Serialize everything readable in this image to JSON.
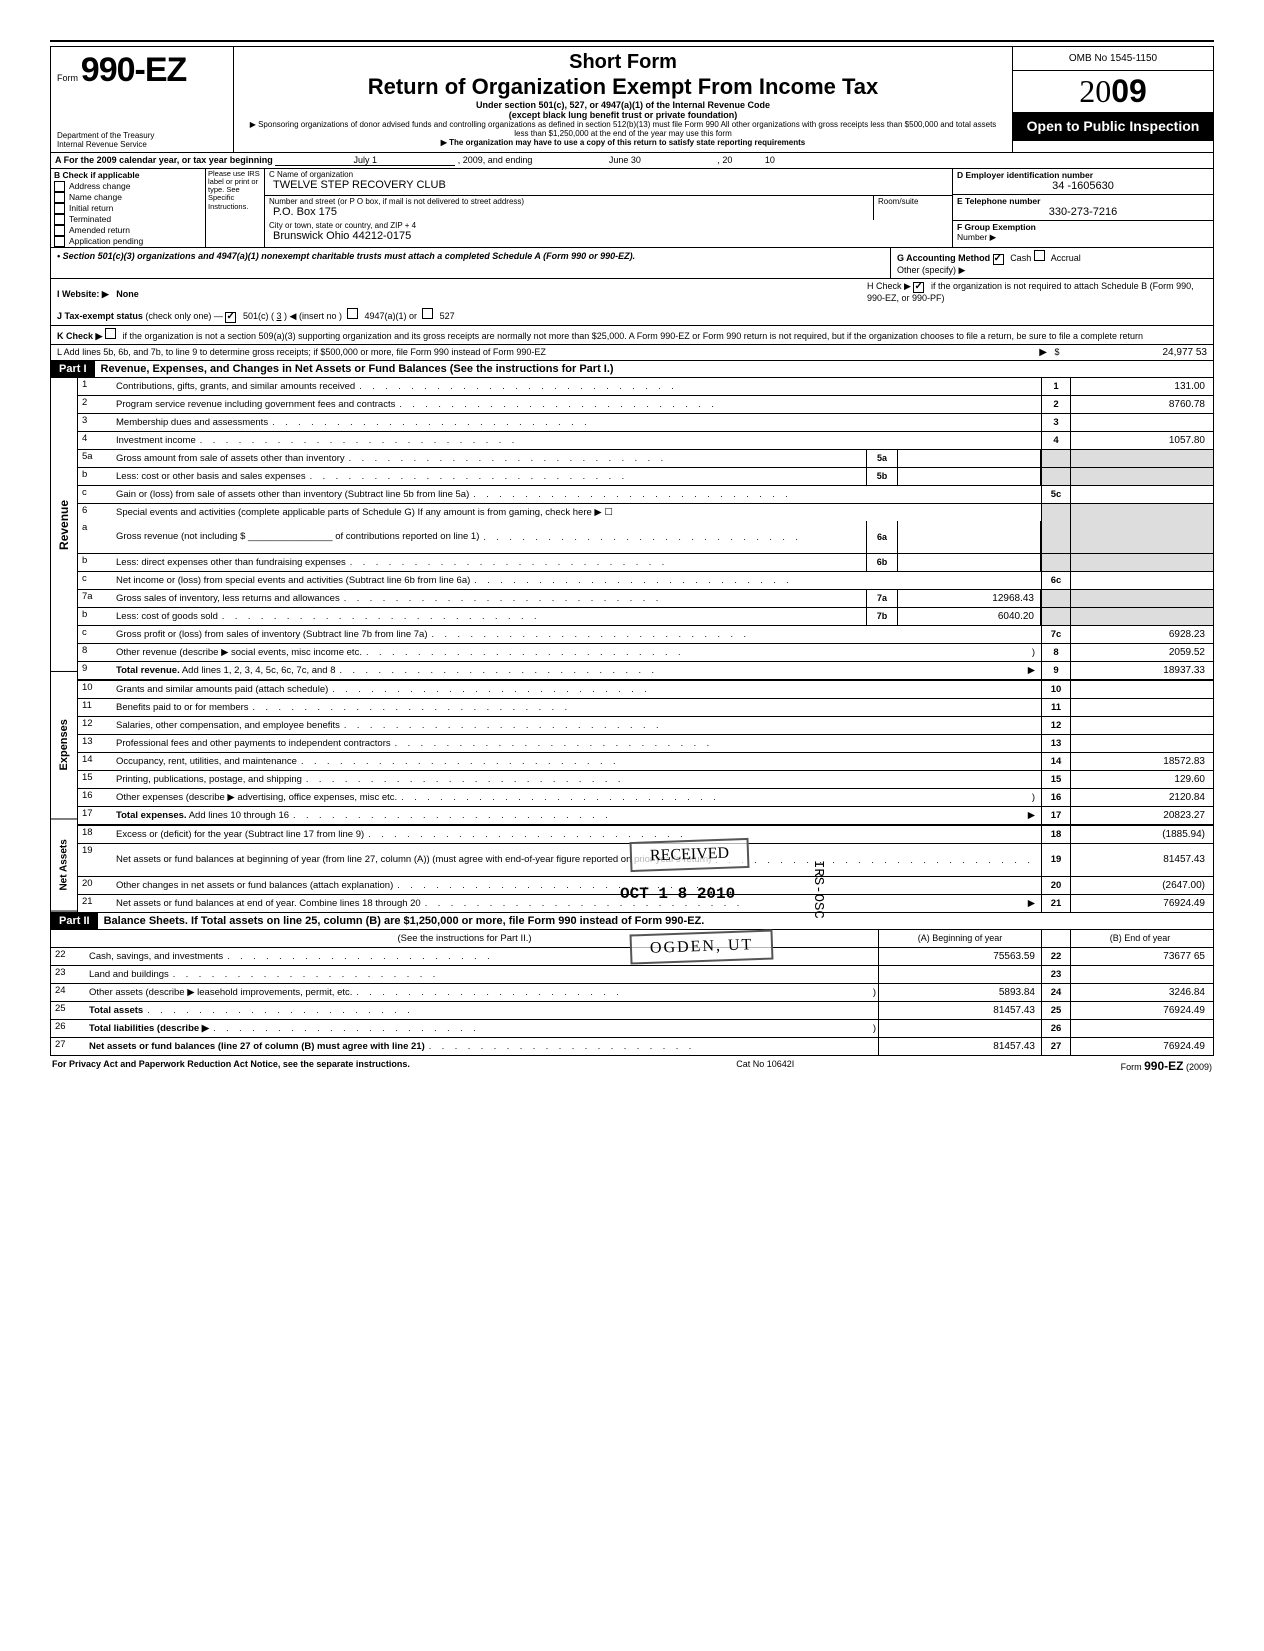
{
  "header": {
    "form_prefix": "Form",
    "form_number": "990-EZ",
    "dept": "Department of the Treasury\nInternal Revenue Service",
    "short": "Short Form",
    "title": "Return of Organization Exempt From Income Tax",
    "sub1": "Under section 501(c), 527, or 4947(a)(1) of the Internal Revenue Code",
    "sub2": "(except black lung benefit trust or private foundation)",
    "note1": "▶ Sponsoring organizations of donor advised funds and controlling organizations as defined in section 512(b)(13) must file Form 990  All other organizations with gross receipts less than $500,000 and total assets less than $1,250,000 at the end of the year may use this form",
    "note2": "▶ The organization may have to use a copy of this return to satisfy state reporting requirements",
    "omb": "OMB No  1545-1150",
    "year_prefix": "20",
    "year_bold": "09",
    "open": "Open to Public Inspection"
  },
  "rowA": {
    "label": "A For the 2009 calendar year, or tax year beginning",
    "begin": "July 1",
    "mid": ", 2009, and ending",
    "end": "June 30",
    "yr_lbl": ", 20",
    "yr": "10"
  },
  "blockB": {
    "header": "B  Check if applicable",
    "items": [
      "Address change",
      "Name change",
      "Initial return",
      "Terminated",
      "Amended return",
      "Application pending"
    ],
    "hint": "Please use IRS label or print or type. See Specific Instructions."
  },
  "org": {
    "c_lbl": "C  Name of organization",
    "name": "TWELVE STEP RECOVERY CLUB",
    "street_lbl": "Number and street (or P O  box, if mail is not delivered to street address)",
    "street": "P.O. Box 175",
    "room_lbl": "Room/suite",
    "city_lbl": "City or town, state or country, and ZIP + 4",
    "city": "Brunswick Ohio 44212-0175"
  },
  "right": {
    "d_lbl": "D Employer identification number",
    "d_val": "34 -1605630",
    "e_lbl": "E  Telephone number",
    "e_val": "330-273-7216",
    "f_lbl": "F  Group Exemption",
    "f_sub": "Number  ▶"
  },
  "bullet": {
    "text": "• Section 501(c)(3) organizations and 4947(a)(1) nonexempt charitable trusts must attach a completed Schedule A (Form 990 or 990-EZ).",
    "g_lbl": "G  Accounting Method",
    "cash": "Cash",
    "accrual": "Accrual",
    "other": "Other (specify)  ▶"
  },
  "rowH": {
    "check": "H  Check  ▶",
    "text": "if the organization is not required to attach Schedule B (Form 990, 990-EZ, or 990-PF)"
  },
  "rowI": {
    "lbl": "I   Website: ▶",
    "val": "None"
  },
  "rowJ": {
    "lbl": "J  Tax-exempt status",
    "text": "(check only one) —",
    "c501": "501(c) (",
    "cnum": "3",
    "cend": ")  ◀ (insert no )",
    "c4947": "4947(a)(1) or",
    "c527": "527"
  },
  "rowK": {
    "lbl": "K  Check  ▶",
    "text": "if the organization is not a section 509(a)(3) supporting organization and its gross receipts are normally not more than $25,000.  A Form 990-EZ or Form 990 return is not required,  but if the organization chooses to file a return, be sure to file a complete return"
  },
  "rowL": {
    "text": "L  Add lines 5b, 6b, and 7b, to line 9 to determine gross receipts; if $500,000 or more, file Form 990 instead of Form 990-EZ",
    "arrow": "▶",
    "dollar": "$",
    "val": "24,977 53"
  },
  "part1": {
    "hdr": "Part I",
    "title": "Revenue, Expenses, and Changes in Net Assets or Fund Balances (See the instructions for Part I.)"
  },
  "lines": [
    {
      "n": "1",
      "d": "Contributions, gifts, grants, and similar amounts received",
      "rn": "1",
      "rv": "131.00"
    },
    {
      "n": "2",
      "d": "Program service revenue including government fees and contracts",
      "rn": "2",
      "rv": "8760.78"
    },
    {
      "n": "3",
      "d": "Membership dues and assessments",
      "rn": "3",
      "rv": ""
    },
    {
      "n": "4",
      "d": "Investment income",
      "rn": "4",
      "rv": "1057.80"
    },
    {
      "n": "5a",
      "d": "Gross amount from sale of assets other than inventory",
      "sn": "5a",
      "sv": "",
      "shade": true
    },
    {
      "n": "b",
      "d": "Less: cost or other basis and sales expenses",
      "sn": "5b",
      "sv": "",
      "shade": true
    },
    {
      "n": "c",
      "d": "Gain or (loss) from sale of assets other than inventory (Subtract line 5b from line 5a)",
      "rn": "5c",
      "rv": ""
    },
    {
      "n": "6",
      "d": "Special events and activities (complete applicable parts of Schedule G)  If any amount is from gaming, check here ▶ ☐",
      "shade": true,
      "nob": true
    },
    {
      "n": "a",
      "d": "Gross revenue (not including $ ________________ of contributions reported on line 1)",
      "sn": "6a",
      "sv": "",
      "shade": true,
      "tall": true
    },
    {
      "n": "b",
      "d": "Less: direct expenses other than fundraising expenses",
      "sn": "6b",
      "sv": "",
      "shade": true
    },
    {
      "n": "c",
      "d": "Net income or (loss) from special events and activities (Subtract line 6b from line 6a)",
      "rn": "6c",
      "rv": ""
    },
    {
      "n": "7a",
      "d": "Gross sales of inventory, less returns and allowances",
      "sn": "7a",
      "sv": "12968.43",
      "shade": true
    },
    {
      "n": "b",
      "d": "Less: cost of goods sold",
      "sn": "7b",
      "sv": "6040.20",
      "shade": true
    },
    {
      "n": "c",
      "d": "Gross profit or (loss) from sales of inventory (Subtract line 7b from line 7a)",
      "rn": "7c",
      "rv": "6928.23"
    },
    {
      "n": "8",
      "d": "Other revenue (describe ▶    social events, misc income etc.",
      "rn": "8",
      "rv": "2059.52",
      "paren": true
    },
    {
      "n": "9",
      "d": "Total revenue. Add lines 1, 2, 3, 4, 5c, 6c, 7c, and 8",
      "rn": "9",
      "rv": "18937.33",
      "bold": true,
      "arrow": true
    }
  ],
  "exp_lines": [
    {
      "n": "10",
      "d": "Grants and similar amounts paid (attach schedule)",
      "rn": "10",
      "rv": ""
    },
    {
      "n": "11",
      "d": "Benefits paid to or for members",
      "rn": "11",
      "rv": ""
    },
    {
      "n": "12",
      "d": "Salaries, other compensation, and employee benefits",
      "rn": "12",
      "rv": ""
    },
    {
      "n": "13",
      "d": "Professional fees and other payments to independent contractors",
      "rn": "13",
      "rv": ""
    },
    {
      "n": "14",
      "d": "Occupancy, rent, utilities, and maintenance",
      "rn": "14",
      "rv": "18572.83"
    },
    {
      "n": "15",
      "d": "Printing, publications, postage, and shipping",
      "rn": "15",
      "rv": "129.60"
    },
    {
      "n": "16",
      "d": "Other expenses (describe  ▶    advertising, office expenses, misc etc.",
      "rn": "16",
      "rv": "2120.84",
      "paren": true
    },
    {
      "n": "17",
      "d": "Total expenses. Add lines 10 through 16",
      "rn": "17",
      "rv": "20823.27",
      "bold": true,
      "arrow": true
    }
  ],
  "na_lines": [
    {
      "n": "18",
      "d": "Excess or (deficit) for the year (Subtract line 17 from line 9)",
      "rn": "18",
      "rv": "(1885.94)"
    },
    {
      "n": "19",
      "d": "Net assets or fund balances at beginning of year (from line 27, column (A)) (must agree with end-of-year figure reported on prior year's return)",
      "rn": "19",
      "rv": "81457.43",
      "tall": true
    },
    {
      "n": "20",
      "d": "Other changes in net assets or fund balances (attach explanation)",
      "rn": "20",
      "rv": "(2647.00)"
    },
    {
      "n": "21",
      "d": "Net assets or fund balances at end of year. Combine lines 18 through 20",
      "rn": "21",
      "rv": "76924.49",
      "arrow": true
    }
  ],
  "part2": {
    "hdr": "Part II",
    "title": "Balance Sheets. If Total assets on line 25, column (B) are $1,250,000 or more, file Form 990 instead of Form 990-EZ.",
    "instr": "(See the instructions for Part II.)",
    "colA": "(A) Beginning of year",
    "colB": "(B) End of year"
  },
  "bs_lines": [
    {
      "n": "22",
      "d": "Cash, savings, and investments",
      "a": "75563.59",
      "rn": "22",
      "b": "73677 65"
    },
    {
      "n": "23",
      "d": "Land and buildings",
      "a": "",
      "rn": "23",
      "b": ""
    },
    {
      "n": "24",
      "d": "Other assets (describe ▶    leasehold improvements, permit, etc.",
      "a": "5893.84",
      "rn": "24",
      "b": "3246.84",
      "paren": true
    },
    {
      "n": "25",
      "d": "Total assets",
      "a": "81457.43",
      "rn": "25",
      "b": "76924.49",
      "bold": true
    },
    {
      "n": "26",
      "d": "Total liabilities (describe ▶",
      "a": "",
      "rn": "26",
      "b": "",
      "bold": true,
      "paren": true
    },
    {
      "n": "27",
      "d": "Net assets or fund balances (line 27 of column (B) must agree with line 21)",
      "a": "81457.43",
      "rn": "27",
      "b": "76924.49",
      "bold": true
    }
  ],
  "footer": {
    "left": "For Privacy Act and Paperwork Reduction Act Notice, see the separate instructions.",
    "cat": "Cat  No  10642I",
    "form": "Form 990-EZ (2009)"
  },
  "stamps": {
    "received": "RECEIVED",
    "date": "OCT 1 8 2010",
    "ogden": "OGDEN, UT",
    "irs": "IRS-OSC"
  },
  "vtabs": {
    "rev": "Revenue",
    "exp": "Expenses",
    "na": "Net Assets"
  }
}
